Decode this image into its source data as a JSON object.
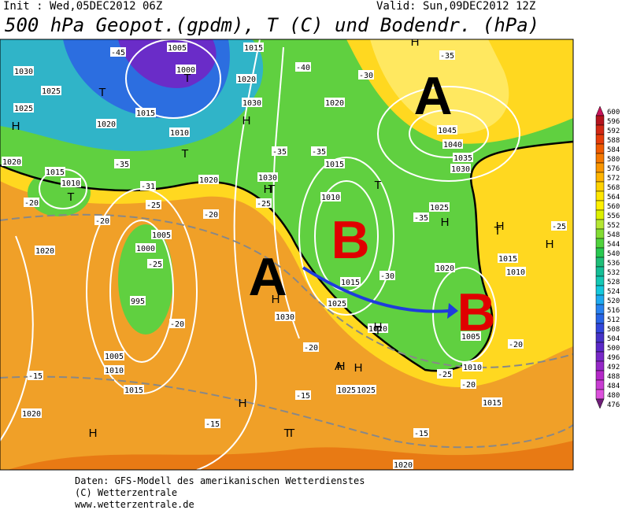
{
  "header": {
    "init": "Init : Wed,05DEC2012 06Z",
    "valid": "Valid: Sun,09DEC2012 12Z",
    "title": "500 hPa Geopot.(gpdm), T (C) und Bodendr. (hPa)"
  },
  "map": {
    "big_labels": [
      {
        "text": "A",
        "color": "#000000"
      },
      {
        "text": "A",
        "color": "#000000"
      },
      {
        "text": "B",
        "color": "#e00000"
      },
      {
        "text": "B",
        "color": "#e00000"
      }
    ],
    "labels": [
      "1030",
      "1025",
      "1025",
      "1020",
      "1015",
      "1010",
      "1005",
      "1000",
      "1015",
      "1020",
      "1030",
      "1020",
      "1015",
      "1010",
      "1030",
      "1020",
      "1020",
      "1010",
      "1015",
      "1020",
      "1005",
      "1000",
      "995",
      "1005",
      "1010",
      "1015",
      "1020",
      "1025",
      "1025",
      "1030",
      "1025",
      "1015",
      "1020",
      "1045",
      "1040",
      "1035",
      "1030",
      "1025",
      "1020",
      "1015",
      "1010",
      "1010",
      "1015",
      "1020",
      "1005",
      "-45",
      "-40",
      "-35",
      "-30",
      "-35",
      "-31",
      "-25",
      "-20",
      "-20",
      "-25",
      "-20",
      "-25",
      "-20",
      "-30",
      "-35",
      "-25",
      "-20",
      "-20",
      "-25",
      "-20",
      "-15",
      "-15",
      "-15",
      "-15",
      "-35",
      "-35"
    ],
    "centers": [
      "T",
      "T",
      "T",
      "T",
      "H",
      "H",
      "H",
      "T",
      "H",
      "A",
      "H",
      "H",
      "T",
      "H",
      "H",
      "T",
      "T",
      "H",
      "H",
      "H",
      "H",
      "T",
      "H",
      "T"
    ]
  },
  "legend": {
    "levels": [
      600,
      596,
      592,
      588,
      584,
      580,
      576,
      572,
      568,
      564,
      560,
      556,
      552,
      548,
      544,
      540,
      536,
      532,
      528,
      524,
      520,
      516,
      512,
      508,
      504,
      500,
      496,
      492,
      488,
      484,
      480,
      476
    ],
    "colors": [
      "#c8145a",
      "#b4141e",
      "#d22814",
      "#e63c0a",
      "#f05a00",
      "#f57800",
      "#fa9600",
      "#ffb400",
      "#ffd200",
      "#ffe600",
      "#fff000",
      "#dcf000",
      "#b4e632",
      "#82dc32",
      "#50d23c",
      "#28c850",
      "#1ebe78",
      "#14be96",
      "#14c8b4",
      "#14c8dc",
      "#1eaaf0",
      "#2882f0",
      "#2864e6",
      "#3246dc",
      "#4632c8",
      "#5a28c8",
      "#7828c8",
      "#9628c8",
      "#b428c8",
      "#c83cd2",
      "#dc50dc",
      "#6e1e78"
    ]
  },
  "footer": {
    "lines": [
      "Daten: GFS-Modell des amerikanischen Wetterdienstes",
      "(C) Wetterzentrale",
      "www.wetterzentrale.de"
    ]
  }
}
